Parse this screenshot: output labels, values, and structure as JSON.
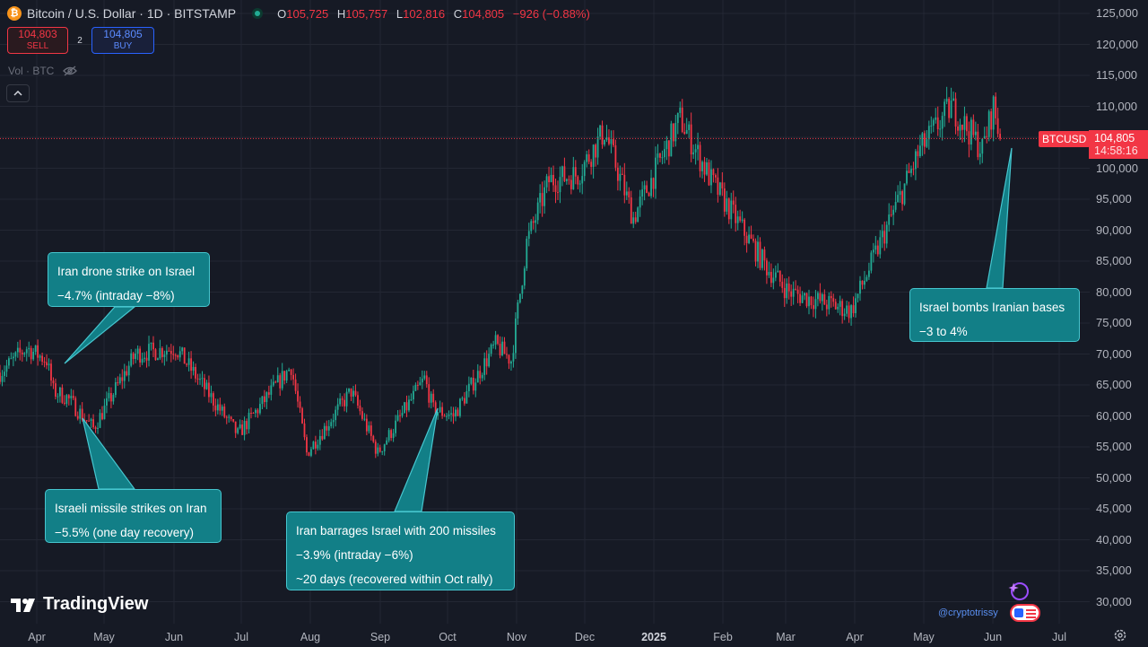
{
  "header": {
    "coin_glyph": "₿",
    "title": "Bitcoin / U.S. Dollar · 1D · BITSTAMP",
    "o_label": "O",
    "o_value": "105,725",
    "h_label": "H",
    "h_value": "105,757",
    "l_label": "L",
    "l_value": "102,816",
    "c_label": "C",
    "c_value": "104,805",
    "change": "−926 (−0.88%)"
  },
  "trade": {
    "sell_price": "104,803",
    "sell_label": "SELL",
    "spread": "2",
    "buy_price": "104,805",
    "buy_label": "BUY"
  },
  "volume_label": "Vol · BTC",
  "price_axis": [
    "125,000",
    "120,000",
    "115,000",
    "110,000",
    "105,000",
    "100,000",
    "95,000",
    "90,000",
    "85,000",
    "80,000",
    "75,000",
    "70,000",
    "65,000",
    "60,000",
    "55,000",
    "50,000",
    "45,000",
    "40,000",
    "35,000",
    "30,000"
  ],
  "time_axis": [
    "Apr",
    "May",
    "Jun",
    "Jul",
    "Aug",
    "Sep",
    "Oct",
    "Nov",
    "Dec",
    "2025",
    "Feb",
    "Mar",
    "Apr",
    "May",
    "Jun",
    "Jul"
  ],
  "current": {
    "symbol": "BTCUSD",
    "price": "104,805",
    "countdown": "14:58:16"
  },
  "callouts": [
    {
      "line1": "Iran drone strike on Israel",
      "line2": "−4.7% (intraday −8%)"
    },
    {
      "line1": "Israeli missile strikes on Iran",
      "line2": "−5.5% (one day recovery)"
    },
    {
      "line1": "Iran barrages Israel with 200 missiles",
      "line2": "−3.9% (intraday −6%)",
      "line3": "~20 days (recovered within Oct rally)"
    },
    {
      "line1": "Israel bombs Iranian bases",
      "line2": "−3 to 4%"
    }
  ],
  "brand": "TradingView",
  "watermark": "@cryptotrissy",
  "colors": {
    "up": "#22ab94",
    "down": "#f23645",
    "background": "#161a25",
    "callout": "#127f87"
  },
  "chart_data": {
    "type": "candlestick",
    "title": "Bitcoin / U.S. Dollar · 1D · BITSTAMP",
    "ylim": [
      27000,
      127000
    ],
    "x": [
      "2024-03-20",
      "2024-04-01",
      "2024-04-10",
      "2024-04-13",
      "2024-04-19",
      "2024-05-01",
      "2024-05-20",
      "2024-06-07",
      "2024-07-05",
      "2024-07-29",
      "2024-08-05",
      "2024-08-25",
      "2024-09-06",
      "2024-09-27",
      "2024-10-01",
      "2024-10-10",
      "2024-10-29",
      "2024-11-05",
      "2024-11-12",
      "2024-11-22",
      "2024-12-05",
      "2024-12-17",
      "2024-12-30",
      "2025-01-20",
      "2025-02-03",
      "2025-02-28",
      "2025-03-10",
      "2025-04-07",
      "2025-05-08",
      "2025-05-22",
      "2025-06-05",
      "2025-06-10",
      "2025-06-13"
    ],
    "values": [
      67000,
      71000,
      69000,
      64000,
      63000,
      58000,
      70000,
      71000,
      57000,
      68000,
      54000,
      64000,
      54000,
      66000,
      61000,
      60000,
      71500,
      69000,
      88000,
      98000,
      99000,
      106000,
      92000,
      108000,
      98000,
      84000,
      80000,
      77000,
      103000,
      110000,
      103000,
      110000,
      104805
    ]
  }
}
